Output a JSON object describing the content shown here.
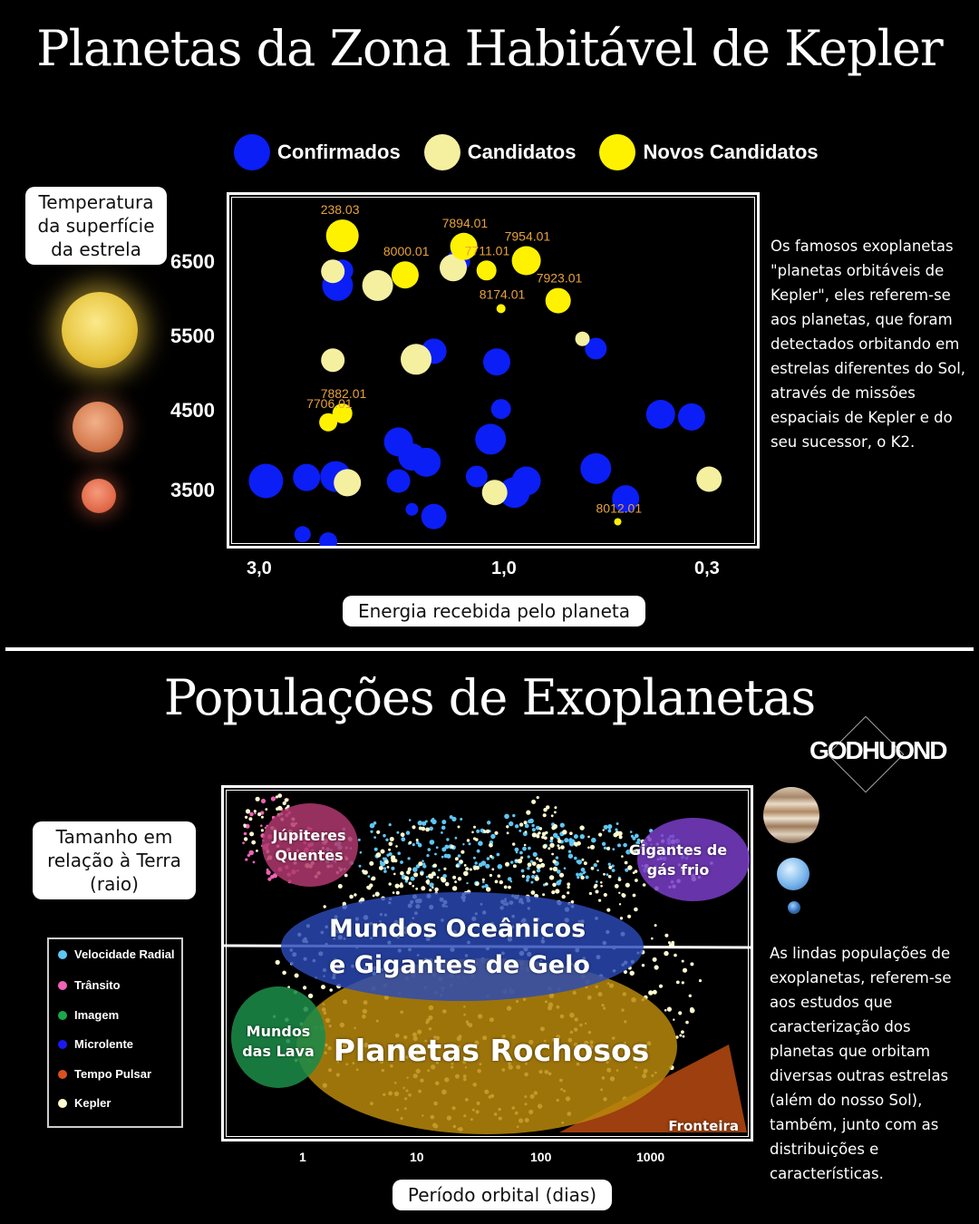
{
  "top": {
    "title": "Planetas da Zona Habitável de Kepler",
    "legend": [
      {
        "label": "Confirmados",
        "color": "#0b1ef5"
      },
      {
        "label": "Candidatos",
        "color": "#f5efa0"
      },
      {
        "label": "Novos Candidatos",
        "color": "#fff200"
      }
    ],
    "ylabel": "Temperatura da superfície da estrela",
    "xlabel": "Energia recebida pelo planeta",
    "description": "Os famosos exoplanetas \"planetas orbitáveis de Kepler\", eles referem-se aos planetas, que foram detectados orbitando em estrelas diferentes do Sol, através de missões espaciais de Kepler e do seu sucessor, o K2."
  },
  "bottom": {
    "title": "Populações de Exoplanetas",
    "logo": "GODHUOND",
    "ylabel": "Tamanho em relação à Terra (raio)",
    "xlabel": "Período orbital (dias)",
    "legend": [
      {
        "label": "Velocidade Radial",
        "color": "#5ec6f5"
      },
      {
        "label": "Trânsito",
        "color": "#f062b4"
      },
      {
        "label": "Imagem",
        "color": "#19a84a"
      },
      {
        "label": "Microlente",
        "color": "#1a1af0"
      },
      {
        "label": "Tempo Pulsar",
        "color": "#d9521e"
      },
      {
        "label": "Kepler",
        "color": "#fffbd0"
      }
    ],
    "regions": {
      "hot_jupiters": "Júpiteres Quentes",
      "cold_giants": "Gigantes de gás frio",
      "ocean": "Mundos Oceânicos e Gigantes de Gelo",
      "lava": "Mundos das Lava",
      "rocky": "Planetas Rochosos",
      "frontier": "Fronteira"
    },
    "description": "As lindas populações de exoplanetas, referem-se aos estudos que caracterização dos planetas que orbitam diversas outras estrelas (além do nosso Sol), também, junto com as distribuições e características."
  },
  "chart_data": [
    {
      "type": "scatter",
      "title": "Planetas da Zona Habitável de Kepler",
      "xlabel": "Energia recebida pelo planeta",
      "ylabel": "Temperatura da superfície da estrela",
      "x_ticks": [
        "3,0",
        "1,0",
        "0,3"
      ],
      "x_scale": "log",
      "x_reversed": true,
      "xlim": [
        3.6,
        0.26
      ],
      "y_ticks": [
        6500,
        5500,
        4500,
        3500
      ],
      "ylim": [
        3050,
        7000
      ],
      "star_colors": {
        "6500": "#f2d24a",
        "4500": "#e08a5a",
        "3500": "#e86a4a"
      },
      "series": [
        {
          "name": "Confirmados",
          "color": "#0b1ef5",
          "points": [
            [
              3.0,
              3780,
              19
            ],
            [
              2.45,
              3820,
              15
            ],
            [
              2.12,
              3830,
              17
            ],
            [
              2.05,
              3790,
              14
            ],
            [
              2.1,
              5980,
              17
            ],
            [
              2.05,
              6150,
              12
            ],
            [
              1.55,
              4220,
              16
            ],
            [
              1.45,
              4050,
              15
            ],
            [
              1.35,
              3990,
              16
            ],
            [
              1.55,
              3780,
              13
            ],
            [
              1.45,
              3460,
              7
            ],
            [
              1.3,
              3380,
              14
            ],
            [
              1.3,
              5240,
              14
            ],
            [
              1.15,
              6260,
              13
            ],
            [
              1.05,
              3830,
              12
            ],
            [
              0.98,
              4250,
              17
            ],
            [
              0.95,
              5120,
              15
            ],
            [
              0.93,
              4590,
              11
            ],
            [
              0.87,
              3650,
              17
            ],
            [
              0.82,
              3780,
              16
            ],
            [
              0.58,
              5270,
              12
            ],
            [
              0.58,
              3920,
              17
            ],
            [
              0.5,
              3580,
              15
            ],
            [
              0.42,
              4530,
              16
            ],
            [
              0.36,
              4500,
              15
            ],
            [
              0.33,
              3790,
              9
            ],
            [
              2.5,
              3180,
              9
            ],
            [
              2.2,
              3100,
              10
            ]
          ]
        },
        {
          "name": "Candidatos",
          "color": "#f5efa0",
          "points": [
            [
              2.15,
              6140,
              13
            ],
            [
              1.72,
              5980,
              17
            ],
            [
              1.42,
              5150,
              17
            ],
            [
              1.18,
              6180,
              15
            ],
            [
              2.15,
              5140,
              13
            ],
            [
              0.96,
              3650,
              14
            ],
            [
              2.0,
              3760,
              15
            ],
            [
              0.62,
              5380,
              8
            ],
            [
              0.33,
              3800,
              14
            ]
          ]
        },
        {
          "name": "Novos Candidatos",
          "color": "#fff200",
          "points": [
            [
              2.05,
              6540,
              18,
              "238.03"
            ],
            [
              1.5,
              6100,
              15,
              "8000.01"
            ],
            [
              1.12,
              6420,
              15,
              "7894.01"
            ],
            [
              1.0,
              6150,
              11,
              "7711.01"
            ],
            [
              0.82,
              6260,
              16,
              "7954.01"
            ],
            [
              0.93,
              5720,
              5,
              "8174.01"
            ],
            [
              0.7,
              5810,
              14,
              "7923.01"
            ],
            [
              2.05,
              4540,
              11,
              "7882.01"
            ],
            [
              2.2,
              4440,
              10,
              "7706.01"
            ],
            [
              0.52,
              3320,
              4,
              "8012.01"
            ]
          ]
        }
      ]
    },
    {
      "type": "scatter",
      "title": "Populações de Exoplanetas",
      "xlabel": "Período orbital (dias)",
      "ylabel": "Tamanho em relação à Terra (raio)",
      "x_scale": "log",
      "x_ticks": [
        "1",
        "10",
        "100",
        "1000"
      ],
      "series_names": [
        "Velocidade Radial",
        "Trânsito",
        "Imagem",
        "Microlente",
        "Tempo Pulsar",
        "Kepler"
      ]
    }
  ]
}
